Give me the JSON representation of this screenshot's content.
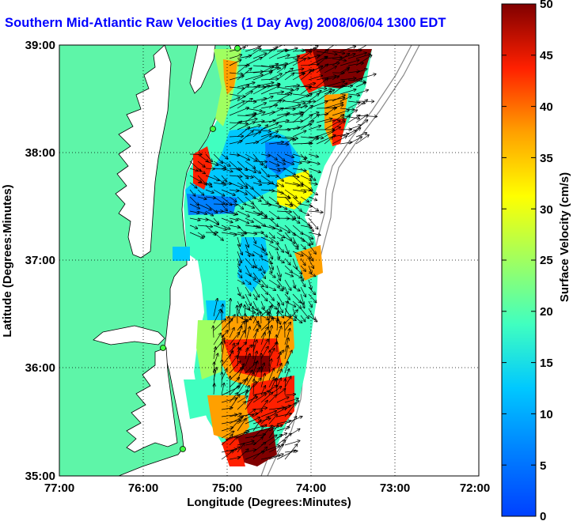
{
  "title": "Southern Mid-Atlantic Raw Velocities (1 Day Avg) 2008/06/04 1300 EDT",
  "map": {
    "xlabel": "Longitude (Degrees:Minutes)",
    "ylabel": "Latitude (Degrees:Minutes)",
    "xticks": [
      "77:00",
      "76:00",
      "75:00",
      "74:00",
      "73:00",
      "72:00"
    ],
    "yticks": [
      "39:00",
      "38:00",
      "37:00",
      "36:00",
      "35:00"
    ],
    "lon_range": [
      -77,
      -72
    ],
    "lat_range": [
      35,
      39
    ],
    "grid": "dotted",
    "land_color": "#5ef5a8",
    "water_color": "#ffffff"
  },
  "colorbar": {
    "label": "Surface Velocity (cm/s)",
    "ticks": [
      "50",
      "45",
      "40",
      "35",
      "30",
      "25",
      "20",
      "15",
      "10",
      "5",
      "0"
    ],
    "range": [
      0,
      50
    ],
    "colormap": "jet"
  }
}
